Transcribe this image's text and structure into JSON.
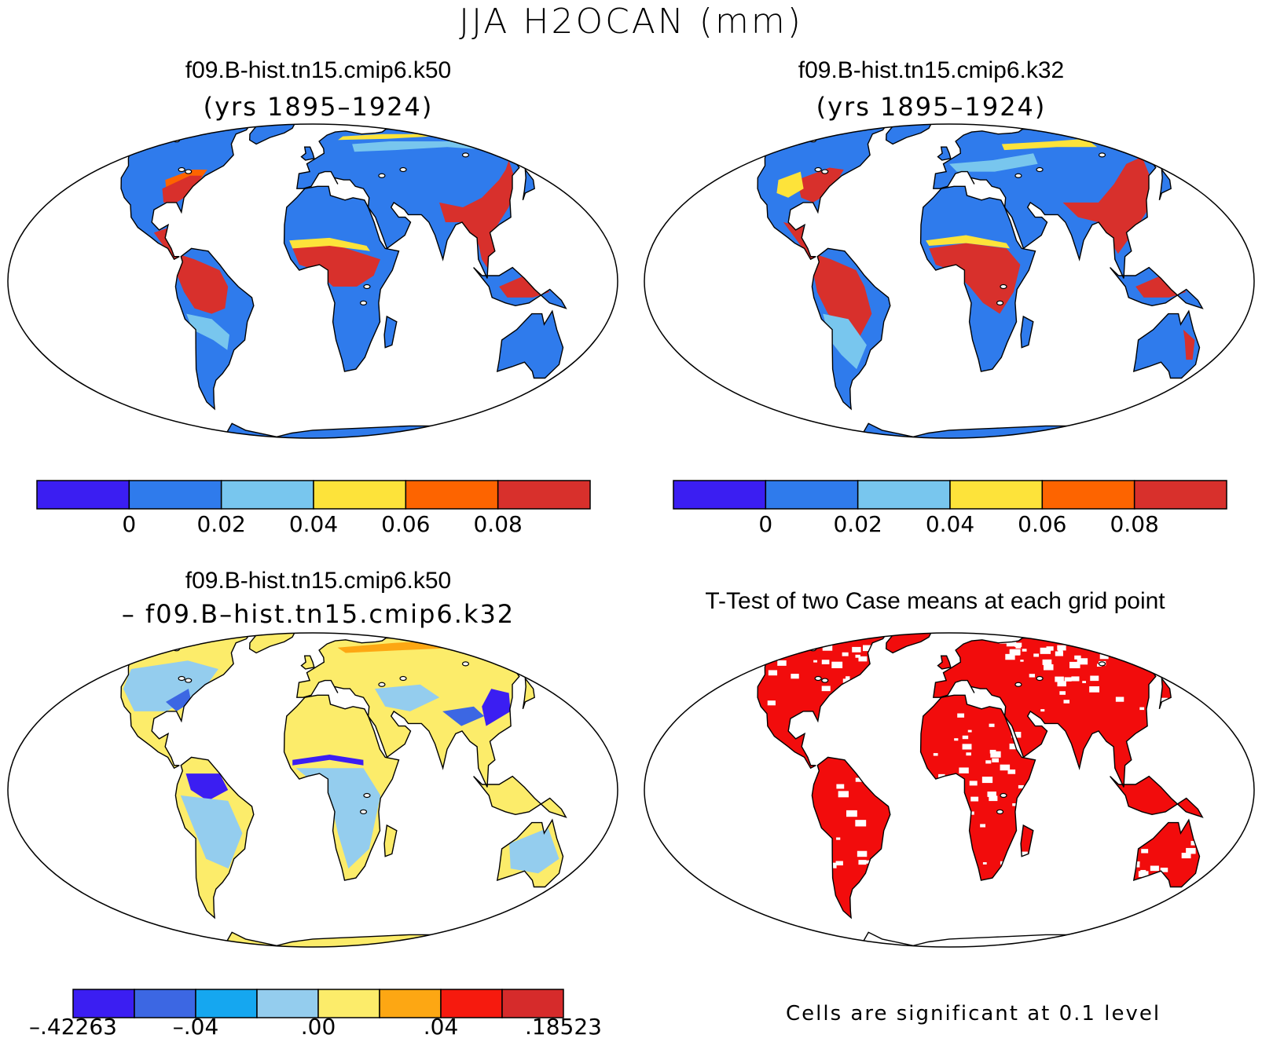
{
  "figure": {
    "title": "JJA H2OCAN (mm)"
  },
  "panels": [
    {
      "id": "k50",
      "title": "f09.B-hist.tn15.cmip6.k50",
      "subtitle": "(yrs 1895–1924)",
      "scheme": "mean"
    },
    {
      "id": "k32",
      "title": "f09.B-hist.tn15.cmip6.k32",
      "subtitle": "(yrs 1895–1924)",
      "scheme": "mean"
    },
    {
      "id": "diff",
      "title": "f09.B-hist.tn15.cmip6.k50",
      "subtitle": "– f09.B–hist.tn15.cmip6.k32",
      "scheme": "diff"
    },
    {
      "id": "ttest",
      "title": "T-Test of two Case means at each grid point",
      "subtitle": "",
      "scheme": "ttest"
    }
  ],
  "colorbars": {
    "mean": {
      "colors": [
        "#3b1ef2",
        "#2f7bec",
        "#78c6ee",
        "#fde33a",
        "#fd6400",
        "#d8302c"
      ],
      "labels": [
        "0",
        "0.02",
        "0.04",
        "0.06",
        "0.08"
      ]
    },
    "diff": {
      "colors": [
        "#3b1ef2",
        "#3c67e3",
        "#15a7f0",
        "#94cdee",
        "#fcec6a",
        "#fda713",
        "#f61a0e",
        "#d62b2b"
      ],
      "labels": [
        "–.42263",
        "–.04",
        ".00",
        ".04",
        ".18523"
      ]
    }
  },
  "ttest_note": "Cells are significant at 0.1 level",
  "colors": {
    "significant": "#f20c0c",
    "land_default": "#2f7bec"
  }
}
